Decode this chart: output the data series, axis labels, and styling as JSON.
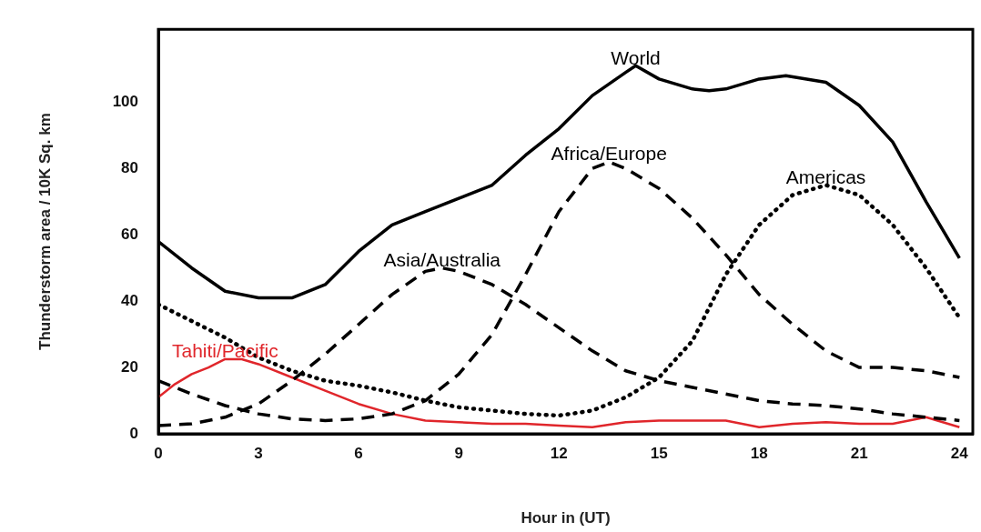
{
  "chart_data": {
    "type": "line",
    "xlabel": "Hour in (UT)",
    "ylabel": "Thunderstorm area / 10K Sq. km",
    "xlim": [
      0,
      24.4
    ],
    "xticks": [
      0,
      3,
      6,
      9,
      12,
      15,
      18,
      21,
      24
    ],
    "ylim": [
      0,
      122
    ],
    "yticks": [
      0,
      20,
      40,
      60,
      80,
      100
    ],
    "marker": "none",
    "legend": false,
    "series": [
      {
        "name": "World",
        "color": "#000000",
        "line_style": "solid",
        "x": [
          0,
          1,
          2,
          3,
          4,
          5,
          6,
          7,
          8,
          9,
          10,
          11,
          12,
          13,
          14,
          14.3,
          15,
          16,
          16.5,
          17,
          18,
          18.8,
          20,
          21,
          22,
          23,
          24
        ],
        "values": [
          58,
          50,
          43,
          41,
          41,
          45,
          55,
          63,
          67,
          71,
          75,
          84,
          92,
          102,
          109,
          111,
          107,
          104,
          103.5,
          104,
          107,
          108,
          106,
          99,
          88,
          70,
          53
        ]
      },
      {
        "name": "Asia/Australia",
        "color": "#000000",
        "line_style": "dashed",
        "x": [
          0,
          1,
          2,
          3,
          4,
          5,
          6,
          7,
          8,
          8.5,
          9,
          10,
          11,
          12,
          13,
          14,
          15,
          16,
          17,
          18,
          19,
          20,
          21,
          22,
          23,
          24
        ],
        "values": [
          2.5,
          3,
          5,
          9,
          16,
          24,
          33,
          42,
          49,
          50,
          49,
          45,
          39,
          32,
          25,
          19,
          16,
          14,
          12,
          10,
          9,
          8.5,
          7.5,
          6,
          5,
          4
        ]
      },
      {
        "name": "Africa/Europe",
        "color": "#000000",
        "line_style": "dashed",
        "x": [
          0,
          1,
          2,
          3,
          4,
          5,
          6,
          7,
          8,
          9,
          10,
          11,
          12,
          13,
          13.5,
          14,
          15,
          16,
          17,
          18,
          19,
          20,
          21,
          22,
          23,
          24
        ],
        "values": [
          16,
          12,
          8.5,
          6,
          4.5,
          4,
          4.5,
          6,
          10,
          18,
          30,
          48,
          67,
          80,
          82,
          80,
          74,
          65,
          54,
          42,
          33,
          25,
          20,
          20,
          19,
          17
        ]
      },
      {
        "name": "Americas",
        "color": "#000000",
        "line_style": "dotted",
        "x": [
          0,
          1,
          2,
          3,
          4,
          5,
          6,
          7,
          8,
          9,
          10,
          11,
          12,
          13,
          14,
          15,
          16,
          17,
          18,
          19,
          20,
          21,
          22,
          23,
          24
        ],
        "values": [
          39,
          34,
          29,
          23,
          19,
          16,
          14.5,
          12.5,
          10,
          8,
          7,
          6,
          5.5,
          7,
          11,
          17,
          28,
          48,
          63,
          72,
          75,
          72,
          63,
          50,
          35
        ]
      },
      {
        "name": "Tahiti/Pacific",
        "color": "#e0262b",
        "line_style": "solid",
        "x": [
          0,
          0.5,
          1,
          1.5,
          2,
          2.5,
          3,
          4,
          5,
          6,
          7,
          8,
          9,
          10,
          11,
          12,
          13,
          14,
          15,
          16,
          17,
          18,
          19,
          20,
          21,
          22,
          23,
          24
        ],
        "values": [
          11,
          15,
          18,
          20,
          22.5,
          22.5,
          21,
          17,
          13,
          9,
          6,
          4,
          3.5,
          3,
          3,
          2.5,
          2,
          3.5,
          4,
          4,
          4,
          2,
          3,
          3.5,
          3,
          3,
          5,
          2
        ]
      }
    ]
  }
}
